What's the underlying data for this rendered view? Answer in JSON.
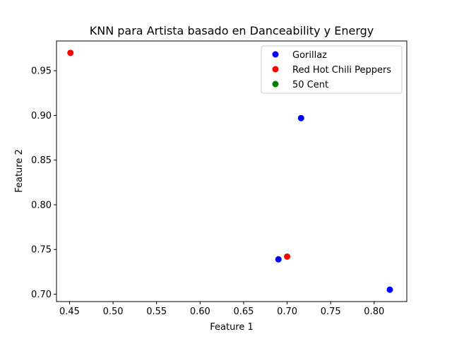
{
  "chart_data": {
    "type": "scatter",
    "title": "KNN para Artista basado en Danceability y Energy",
    "xlabel": "Feature 1",
    "ylabel": "Feature 2",
    "xlim": [
      0.435,
      0.8375
    ],
    "ylim": [
      0.6917,
      0.9833
    ],
    "x_ticks": [
      0.45,
      0.5,
      0.55,
      0.6,
      0.65,
      0.7,
      0.75,
      0.8
    ],
    "x_tick_labels": [
      "0.45",
      "0.50",
      "0.55",
      "0.60",
      "0.65",
      "0.70",
      "0.75",
      "0.80"
    ],
    "y_ticks": [
      0.7,
      0.75,
      0.8,
      0.85,
      0.9,
      0.95
    ],
    "y_tick_labels": [
      "0.70",
      "0.75",
      "0.80",
      "0.85",
      "0.90",
      "0.95"
    ],
    "grid": false,
    "legend_position": "top-right",
    "series": [
      {
        "name": "Gorillaz",
        "color": "#0000ff",
        "points": [
          {
            "x": 0.716,
            "y": 0.897
          },
          {
            "x": 0.69,
            "y": 0.739
          },
          {
            "x": 0.818,
            "y": 0.705
          }
        ]
      },
      {
        "name": "Red Hot Chili Peppers",
        "color": "#ff0000",
        "points": [
          {
            "x": 0.451,
            "y": 0.97
          },
          {
            "x": 0.7,
            "y": 0.742
          }
        ]
      },
      {
        "name": "50 Cent",
        "color": "#008000",
        "points": []
      }
    ]
  }
}
